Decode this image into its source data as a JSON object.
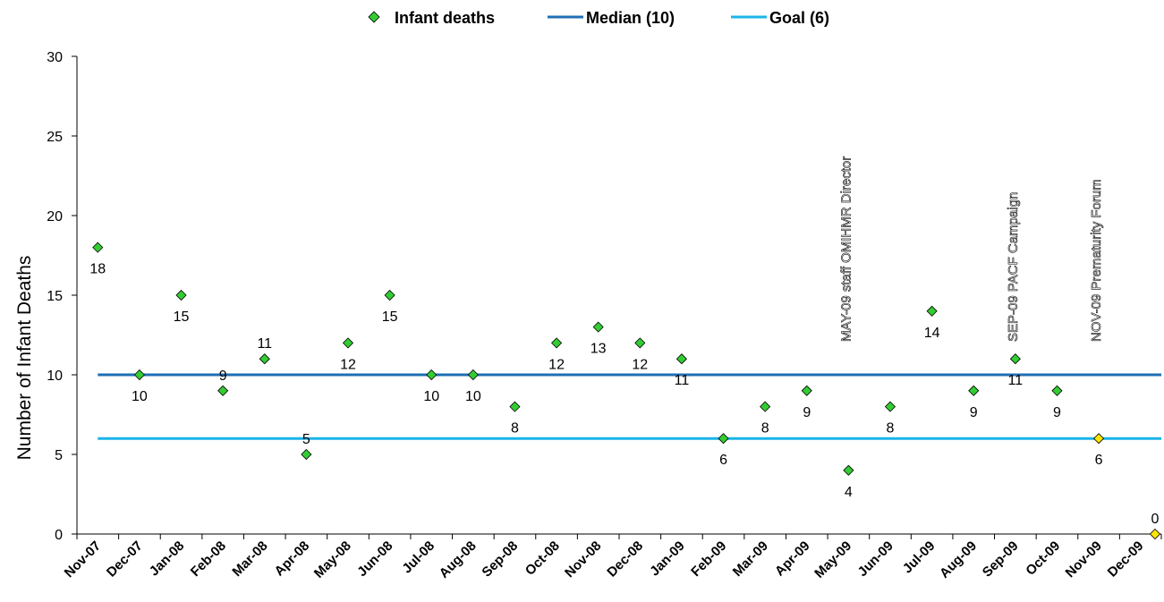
{
  "chart_data": {
    "type": "scatter",
    "ylabel": "Number of Infant Deaths",
    "xlabel": "",
    "ylim": [
      0,
      30
    ],
    "yticks": [
      0,
      5,
      10,
      15,
      20,
      25,
      30
    ],
    "grid": false,
    "legend_position": "top",
    "categories": [
      "Nov-07",
      "Dec-07",
      "Jan-08",
      "Feb-08",
      "Mar-08",
      "Apr-08",
      "May-08",
      "Jun-08",
      "Jul-08",
      "Aug-08",
      "Sep-08",
      "Oct-08",
      "Nov-08",
      "Dec-08",
      "Jan-09",
      "Feb-09",
      "Mar-09",
      "Apr-09",
      "May-09",
      "Jun-09",
      "Jul-09",
      "Aug-09",
      "Sep-09",
      "Oct-09",
      "Nov-09",
      "Dec-09"
    ],
    "series": [
      {
        "name": "Infant deaths",
        "values": [
          18,
          10,
          15,
          9,
          11,
          5,
          12,
          15,
          10,
          10,
          8,
          12,
          13,
          12,
          11,
          6,
          8,
          9,
          4,
          8,
          14,
          9,
          11,
          9,
          6,
          0
        ],
        "label_position": [
          "below",
          "below",
          "below",
          "above",
          "above",
          "above",
          "below",
          "below",
          "below",
          "below",
          "below",
          "below",
          "below",
          "below",
          "below",
          "below",
          "below",
          "below",
          "below",
          "below",
          "below",
          "below",
          "below",
          "below",
          "below",
          "above"
        ],
        "color": "#33CC33",
        "highlight_color": "#FFE600",
        "highlight_indices": [
          24,
          25
        ]
      },
      {
        "name": "Median (10)",
        "value": 10,
        "color": "#1F6FB5"
      },
      {
        "name": "Goal (6)",
        "value": 6,
        "color": "#1BB4E8"
      }
    ],
    "annotations": [
      {
        "text": "MAY-09 staff OMIHMR Director",
        "category_index": 18
      },
      {
        "text": "SEP-09 PACF Campaign",
        "category_index": 22
      },
      {
        "text": "NOV-09 Prematurity Forum",
        "category_index": 24
      }
    ]
  }
}
